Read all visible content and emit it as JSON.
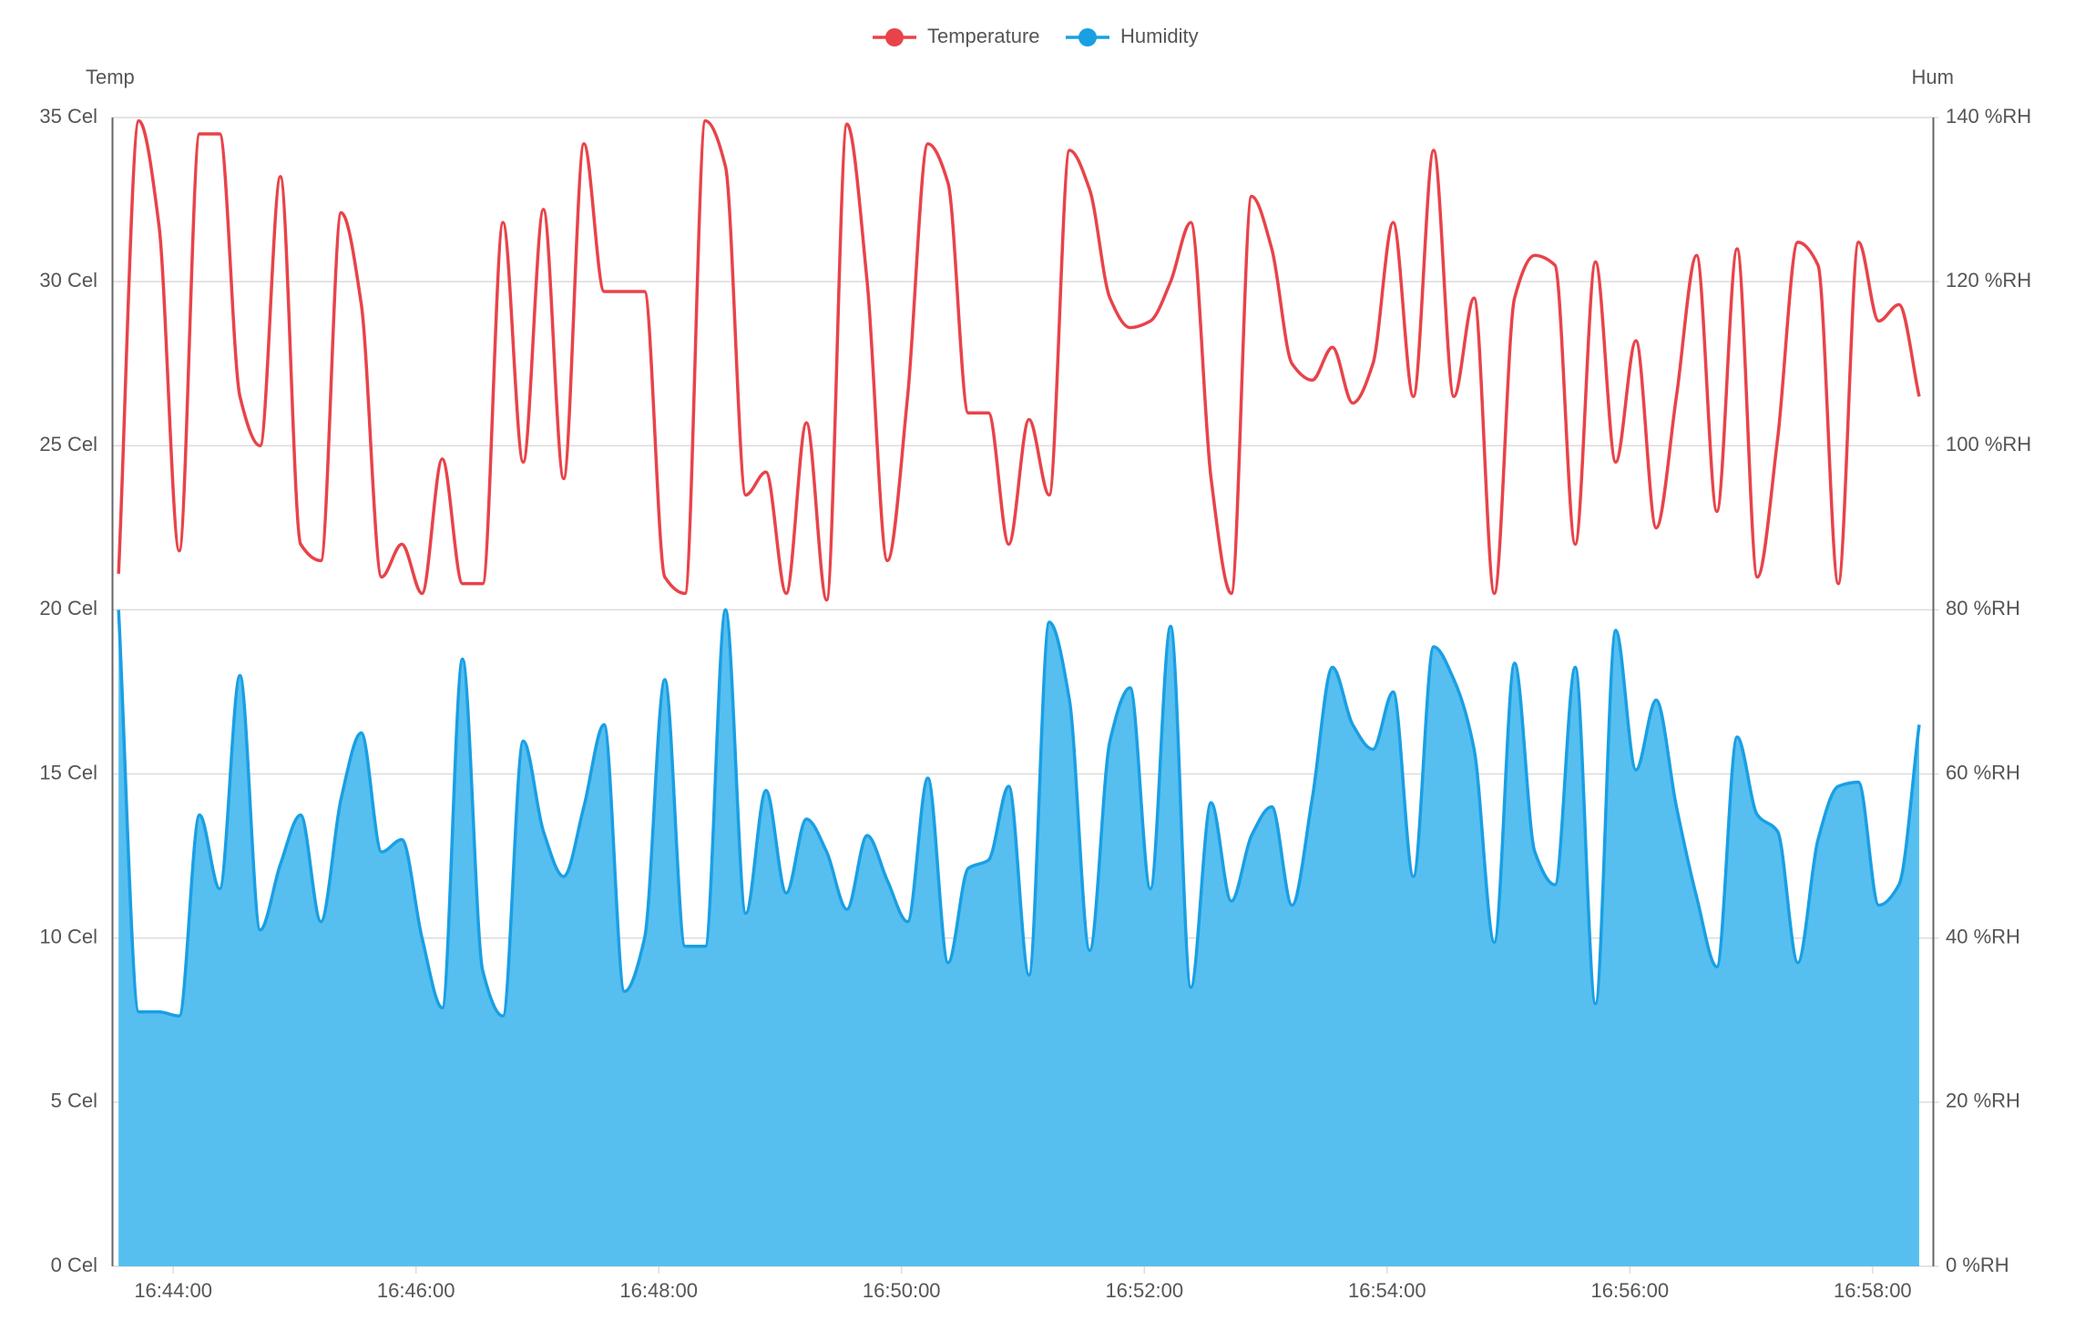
{
  "chart_data": {
    "type": "line",
    "y_axis_label": "Temp",
    "y2_axis_label": "Hum",
    "x": [
      "16:43:33",
      "16:43:43",
      "16:43:53",
      "16:44:03",
      "16:44:13",
      "16:44:23",
      "16:44:33",
      "16:44:43",
      "16:44:53",
      "16:45:03",
      "16:45:13",
      "16:45:23",
      "16:45:33",
      "16:45:43",
      "16:45:53",
      "16:46:03",
      "16:46:13",
      "16:46:23",
      "16:46:33",
      "16:46:43",
      "16:46:53",
      "16:47:03",
      "16:47:13",
      "16:47:23",
      "16:47:33",
      "16:47:43",
      "16:47:53",
      "16:48:03",
      "16:48:13",
      "16:48:23",
      "16:48:33",
      "16:48:43",
      "16:48:53",
      "16:49:03",
      "16:49:13",
      "16:49:23",
      "16:49:33",
      "16:49:43",
      "16:49:53",
      "16:50:03",
      "16:50:13",
      "16:50:23",
      "16:50:33",
      "16:50:43",
      "16:50:53",
      "16:51:03",
      "16:51:13",
      "16:51:23",
      "16:51:33",
      "16:51:43",
      "16:51:53",
      "16:52:03",
      "16:52:13",
      "16:52:23",
      "16:52:33",
      "16:52:43",
      "16:52:53",
      "16:53:03",
      "16:53:13",
      "16:53:23",
      "16:53:33",
      "16:53:43",
      "16:53:53",
      "16:54:03",
      "16:54:13",
      "16:54:23",
      "16:54:33",
      "16:54:43",
      "16:54:53",
      "16:55:03",
      "16:55:13",
      "16:55:23",
      "16:55:33",
      "16:55:43",
      "16:55:53",
      "16:56:03",
      "16:56:13",
      "16:56:23",
      "16:56:33",
      "16:56:43",
      "16:56:53",
      "16:57:03",
      "16:57:13",
      "16:57:23",
      "16:57:33",
      "16:57:43",
      "16:57:53",
      "16:58:03",
      "16:58:13",
      "16:58:23"
    ],
    "series": [
      {
        "name": "Temperature",
        "color": "#e8434a",
        "axis": "y",
        "values": [
          21.1,
          34.9,
          31.7,
          21.8,
          34.5,
          34.5,
          26.5,
          25,
          33.2,
          22,
          21.5,
          32.1,
          29.3,
          21,
          22,
          20.5,
          24.6,
          20.8,
          20.8,
          31.8,
          24.5,
          32.2,
          24,
          34.2,
          29.7,
          29.7,
          29.7,
          21,
          20.5,
          34.9,
          33.5,
          23.5,
          24.2,
          20.5,
          25.7,
          20.3,
          34.8,
          30,
          21.5,
          26.5,
          34.2,
          33,
          26,
          26,
          22,
          25.8,
          23.5,
          34,
          32.8,
          29.5,
          28.6,
          28.8,
          30,
          31.8,
          24,
          20.5,
          32.6,
          31,
          27.5,
          27,
          28,
          26.3,
          27.5,
          31.8,
          26.5,
          34,
          26.5,
          29.5,
          20.5,
          29.5,
          30.8,
          30.5,
          22,
          30.6,
          24.5,
          28.2,
          22.5,
          26.5,
          30.8,
          23,
          31,
          21,
          25.2,
          31.2,
          30.5,
          20.8,
          31.2,
          28.8,
          29.3,
          26.5
        ]
      },
      {
        "name": "Humidity",
        "color": "#1a9fe3",
        "fill_color": "#56bff0",
        "axis": "y2",
        "fill": true,
        "values": [
          80,
          31,
          31,
          30.5,
          55,
          46,
          72,
          41,
          49,
          55,
          42,
          57,
          65,
          50.5,
          52,
          40,
          31.5,
          74,
          36,
          30.5,
          64,
          53,
          47.5,
          56,
          66,
          33.5,
          40,
          71.5,
          39,
          39,
          80,
          43,
          58,
          45.5,
          54.5,
          50.5,
          43.5,
          52.5,
          47,
          42,
          59.5,
          37,
          48.5,
          49.5,
          58.5,
          35.5,
          78.5,
          69,
          38.5,
          64,
          70.5,
          46,
          78,
          34,
          56.5,
          44.5,
          52.5,
          56,
          44,
          57,
          73,
          66,
          63,
          70,
          47.5,
          75.5,
          71.5,
          63,
          39.5,
          73.5,
          50.5,
          46.5,
          73,
          32,
          77.5,
          60.5,
          69,
          56,
          45,
          36.5,
          64.5,
          55,
          53,
          37,
          52,
          58.5,
          59,
          44,
          46.5,
          66
        ]
      }
    ],
    "xlim": [
      "16:43:30",
      "16:58:30"
    ],
    "xticks": [
      "16:44:00",
      "16:46:00",
      "16:48:00",
      "16:50:00",
      "16:52:00",
      "16:54:00",
      "16:56:00",
      "16:58:00"
    ],
    "ylim": [
      0,
      35
    ],
    "yticks": [
      {
        "value": 0,
        "label": "0 Cel"
      },
      {
        "value": 5,
        "label": "5 Cel"
      },
      {
        "value": 10,
        "label": "10 Cel"
      },
      {
        "value": 15,
        "label": "15 Cel"
      },
      {
        "value": 20,
        "label": "20 Cel"
      },
      {
        "value": 25,
        "label": "25 Cel"
      },
      {
        "value": 30,
        "label": "30 Cel"
      },
      {
        "value": 35,
        "label": "35 Cel"
      }
    ],
    "y2lim": [
      0,
      140
    ],
    "y2ticks": [
      {
        "value": 0,
        "label": "0 %RH"
      },
      {
        "value": 20,
        "label": "20 %RH"
      },
      {
        "value": 40,
        "label": "40 %RH"
      },
      {
        "value": 60,
        "label": "60 %RH"
      },
      {
        "value": 80,
        "label": "80 %RH"
      },
      {
        "value": 100,
        "label": "100 %RH"
      },
      {
        "value": 120,
        "label": "120 %RH"
      },
      {
        "value": 140,
        "label": "140 %RH"
      }
    ],
    "grid": true,
    "legend": "top"
  }
}
